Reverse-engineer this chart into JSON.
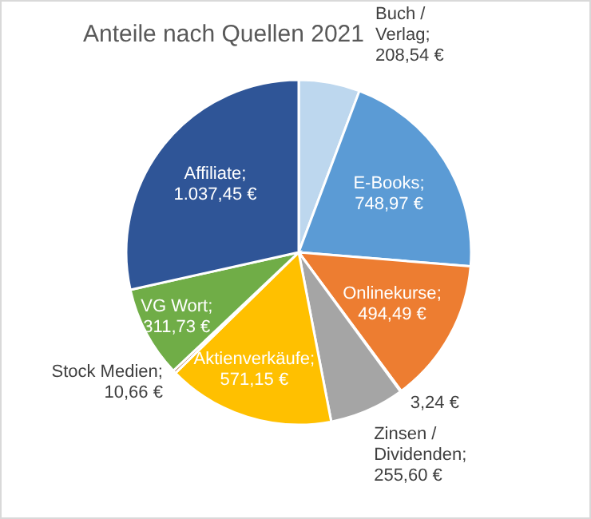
{
  "chart_data": {
    "type": "pie",
    "title": "Anteile nach Quellen 2021",
    "categories": [
      "Buch / Verlag",
      "E-Books",
      "Onlinekurse",
      null,
      "Zinsen / Dividenden",
      "Aktienverkäufe",
      "Stock Medien",
      "VG Wort",
      "Affiliate"
    ],
    "values": [
      208.54,
      748.97,
      494.49,
      3.24,
      255.6,
      571.15,
      10.66,
      311.73,
      1037.45
    ],
    "value_labels": [
      "; 208,54 €",
      "; 748,97 €",
      "; 494,49 €",
      "3,24 €",
      "; 255,60 €",
      "; 571,15 €",
      "; 10,66 €",
      "; 311,73 €",
      "; 1.037,45 €"
    ],
    "colors": [
      "#bdd7ee",
      "#5b9bd5",
      "#ed7d31",
      "#264478",
      "#a5a5a5",
      "#ffc000",
      "#9e480e",
      "#70ad47",
      "#2f5597"
    ]
  }
}
